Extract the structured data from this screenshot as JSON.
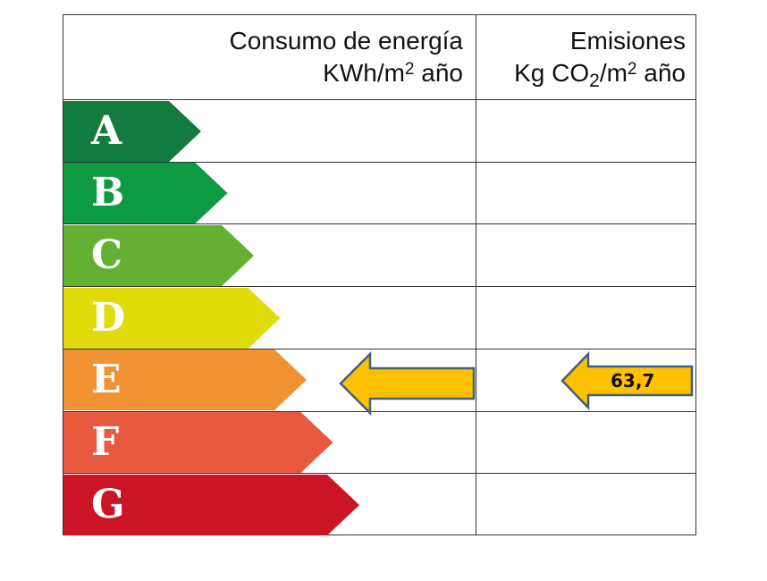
{
  "header": {
    "energy_title": "Consumo de energía",
    "energy_unit_pre": "KWh/m",
    "energy_unit_sup": "2",
    "energy_unit_post": " año",
    "emissions_title": "Emisiones",
    "emissions_unit_pre": "Kg CO",
    "emissions_unit_sub": "2",
    "emissions_unit_mid": "/m",
    "emissions_unit_sup": "2",
    "emissions_unit_post": " año"
  },
  "ratings": [
    {
      "letter": "A",
      "color": "#137b3e"
    },
    {
      "letter": "B",
      "color": "#0d9a43"
    },
    {
      "letter": "C",
      "color": "#64b032"
    },
    {
      "letter": "D",
      "color": "#e2db0b"
    },
    {
      "letter": "E",
      "color": "#f19332"
    },
    {
      "letter": "F",
      "color": "#e85a3f"
    },
    {
      "letter": "G",
      "color": "#cc1427"
    }
  ],
  "indicators": {
    "energy": {
      "rating": "E",
      "value": "",
      "color": "#ffc000",
      "border": "#41607f"
    },
    "emissions": {
      "rating": "E",
      "value": "63,7",
      "color": "#ffc000",
      "border": "#41607f"
    }
  },
  "chart_data": {
    "type": "table",
    "title": "Energy efficiency certificate scale",
    "columns": [
      "Consumo de energía KWh/m2 año",
      "Emisiones Kg CO2/m2 año"
    ],
    "categories": [
      "A",
      "B",
      "C",
      "D",
      "E",
      "F",
      "G"
    ],
    "energy_consumption": {
      "rating": "E",
      "value": null
    },
    "emissions": {
      "rating": "E",
      "value": 63.7,
      "label": "63,7"
    }
  }
}
